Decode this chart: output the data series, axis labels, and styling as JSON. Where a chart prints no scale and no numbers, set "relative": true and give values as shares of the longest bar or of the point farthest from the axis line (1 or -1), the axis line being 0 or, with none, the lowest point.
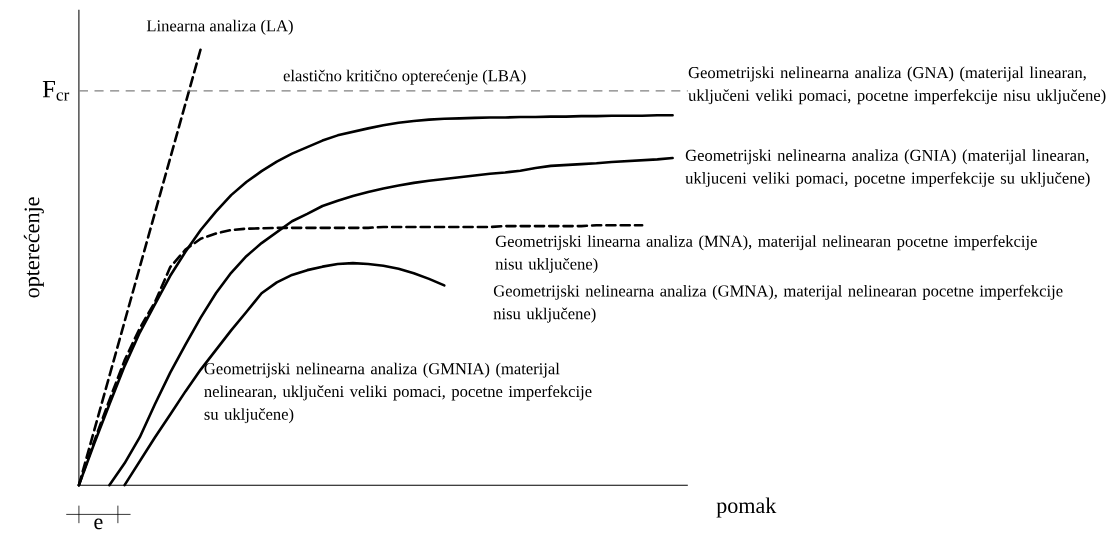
{
  "chart_data": {
    "type": "line",
    "relative": true,
    "xlabel": "pomak",
    "ylabel": "opterećenje",
    "marker": "none",
    "categories": [
      null,
      null,
      null,
      null,
      null,
      null,
      null,
      null,
      null,
      null,
      null,
      null,
      null,
      null,
      null,
      null,
      null,
      null,
      null,
      null,
      null,
      null,
      null,
      null,
      null,
      null,
      null,
      null,
      null,
      null,
      null,
      null,
      null,
      null,
      null,
      null,
      null,
      null,
      null,
      null,
      null
    ],
    "series": [
      {
        "name": "Linearna analiza (LA)",
        "color": "#000000",
        "line_style": "dashed",
        "values": [
          0,
          0.125,
          0.25,
          0.375,
          0.5,
          0.625,
          0.75,
          0.875,
          1,
          null,
          null,
          null,
          null,
          null,
          null,
          null,
          null,
          null,
          null,
          null,
          null,
          null,
          null,
          null,
          null,
          null,
          null,
          null,
          null,
          null,
          null,
          null,
          null,
          null,
          null,
          null,
          null,
          null,
          null,
          null,
          null
        ]
      },
      {
        "name": "Geometrijski nelinearna analiza (GNA) (materijal linearan, uključeni veliki pomaci, pocetne imperfekcije nisu uključene)",
        "color": "#000000",
        "line_style": "solid",
        "values": [
          0,
          0.095,
          0.185,
          0.273,
          0.35,
          0.415,
          0.48,
          0.535,
          0.585,
          0.627,
          0.665,
          0.695,
          0.72,
          0.742,
          0.76,
          0.775,
          0.79,
          0.802,
          0.81,
          0.818,
          0.825,
          0.831,
          0.835,
          0.838,
          0.84,
          0.841,
          0.842,
          0.843,
          0.843,
          0.844,
          0.844,
          0.845,
          0.845,
          0.846,
          0.846,
          0.847,
          0.847,
          0.847,
          0.848,
          0.848,
          null
        ]
      },
      {
        "name": "Geometrijski nelinearna analiza (GNIA) (materijal linearan, ukljuceni veliki pomaci, pocetne imperfekcije su uključene)",
        "color": "#000000",
        "line_style": "solid",
        "values": [
          null,
          null,
          0,
          0.05,
          0.11,
          0.186,
          0.258,
          0.322,
          0.384,
          0.44,
          0.487,
          0.525,
          0.555,
          0.58,
          0.605,
          0.622,
          0.64,
          0.652,
          0.663,
          0.672,
          0.68,
          0.687,
          0.693,
          0.698,
          0.702,
          0.706,
          0.71,
          0.714,
          0.717,
          0.721,
          0.727,
          0.732,
          0.734,
          0.736,
          0.738,
          0.741,
          0.743,
          0.745,
          0.747,
          0.75,
          null
        ]
      },
      {
        "name": "Geometrijski linearna analiza (MNA), materijal nelinearan pocetne imperfekcije nisu uključene)",
        "color": "#000000",
        "line_style": "dashed",
        "values": [
          0,
          0.1,
          0.195,
          0.286,
          0.36,
          0.42,
          0.5,
          0.54,
          0.565,
          0.577,
          0.585,
          0.588,
          0.589,
          0.59,
          0.59,
          0.59,
          0.59,
          0.59,
          0.59,
          0.59,
          0.592,
          0.592,
          0.592,
          0.592,
          0.592,
          0.592,
          0.592,
          0.592,
          0.594,
          0.594,
          0.594,
          0.594,
          0.594,
          0.594,
          0.596,
          0.596,
          0.596,
          0.596,
          null,
          null,
          null
        ]
      },
      {
        "name": "Geometrijski nelinearna analiza (GMNIA) (materijal nelinearan, uključeni veliki pomaci, pocetne imperfekcije su uključene)",
        "color": "#000000",
        "line_style": "solid",
        "values": [
          null,
          null,
          null,
          0,
          0.055,
          0.11,
          0.162,
          0.215,
          0.265,
          0.31,
          0.355,
          0.397,
          0.44,
          0.465,
          0.482,
          0.493,
          0.501,
          0.507,
          0.509,
          0.507,
          0.503,
          0.496,
          0.486,
          0.473,
          0.458,
          null,
          null,
          null,
          null,
          null,
          null,
          null,
          null,
          null,
          null,
          null,
          null,
          null,
          null,
          null,
          null
        ]
      }
    ],
    "ref_lines": [
      {
        "axis": "y",
        "value": 0.904,
        "label": "elastično kritično opterećenje (LBA)",
        "color": "#808080",
        "line_style": "dashed"
      }
    ],
    "annotations": [
      "F$_{cr}$",
      "e",
      "Geometrijski nelinearna analiza (GMNA), materijal nelinearan pocetne imperfekcije nisu uključene)"
    ]
  }
}
